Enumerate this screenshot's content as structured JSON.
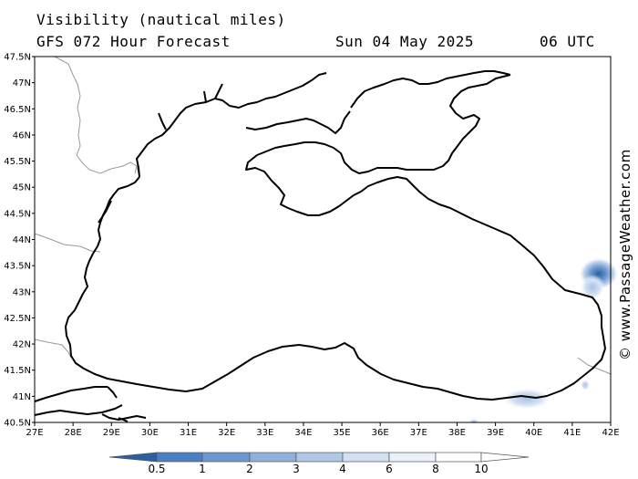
{
  "header": {
    "title": "Visibility (nautical miles)",
    "subtitle": "GFS 072 Hour Forecast",
    "date": "Sun 04 May 2025",
    "time": "06 UTC"
  },
  "credit": "© www.PassageWeather.com",
  "map": {
    "lon_range": [
      27,
      42
    ],
    "lat_range": [
      40.5,
      47.5
    ],
    "lon_ticks": [
      "27E",
      "28E",
      "29E",
      "30E",
      "31E",
      "32E",
      "33E",
      "34E",
      "35E",
      "36E",
      "37E",
      "38E",
      "39E",
      "40E",
      "41E",
      "42E"
    ],
    "lat_ticks": [
      "47.5N",
      "47N",
      "46.5N",
      "46N",
      "45.5N",
      "45N",
      "44.5N",
      "44N",
      "43.5N",
      "43N",
      "42.5N",
      "42N",
      "41.5N",
      "41N",
      "40.5N"
    ],
    "low_visibility_areas": [
      {
        "name": "near 41E 43.5N",
        "lon": 41.05,
        "lat": 43.45,
        "min_visibility_nm": 0.5
      },
      {
        "name": "near 40E 40.8N",
        "lon": 39.9,
        "lat": 40.85,
        "min_visibility_nm": 6
      },
      {
        "name": "near 41.2E 41.2N",
        "lon": 41.2,
        "lat": 41.2,
        "min_visibility_nm": 4
      }
    ]
  },
  "colorbar": {
    "labels": [
      "0.5",
      "1",
      "2",
      "3",
      "4",
      "6",
      "8",
      "10"
    ],
    "colors": [
      "#2c5f9e",
      "#4a7fc1",
      "#6b98cf",
      "#8eb0db",
      "#b0c8e6",
      "#d2e0f1",
      "#eaf1f9",
      "#ffffff"
    ]
  }
}
